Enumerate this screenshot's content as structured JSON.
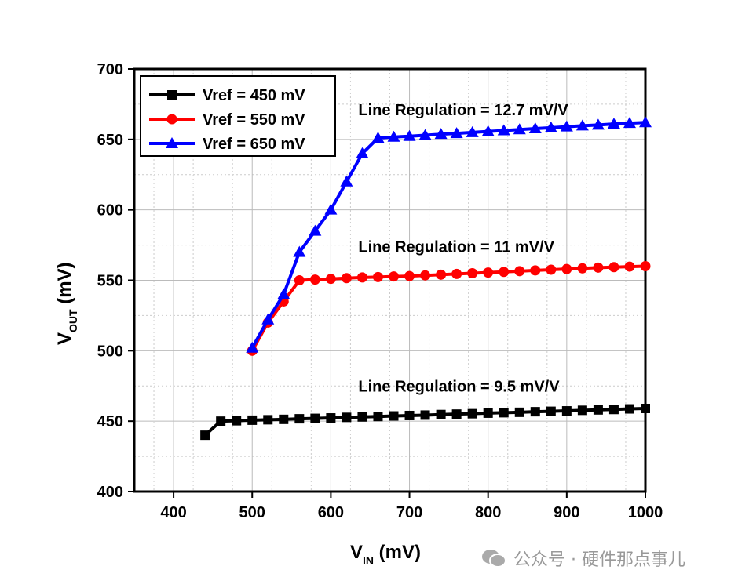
{
  "chart_data": {
    "type": "line",
    "xlabel": "V",
    "xlabel_sub": "IN",
    "xlabel_unit": " (mV)",
    "ylabel": "V",
    "ylabel_sub": "OUT",
    "ylabel_unit": " (mV)",
    "xlim": [
      350,
      1000
    ],
    "ylim": [
      400,
      700
    ],
    "xticks": [
      400,
      500,
      600,
      700,
      800,
      900,
      1000
    ],
    "yticks": [
      400,
      450,
      500,
      550,
      600,
      650,
      700
    ],
    "grid": true,
    "legend": "top-left",
    "series": [
      {
        "name": "Vref = 450 mV",
        "color": "#000000",
        "marker": "square",
        "x": [
          440,
          460,
          480,
          500,
          520,
          540,
          560,
          580,
          600,
          620,
          640,
          660,
          680,
          700,
          720,
          740,
          760,
          780,
          800,
          820,
          840,
          860,
          880,
          900,
          920,
          940,
          960,
          980,
          1000
        ],
        "y": [
          440,
          450,
          450.3,
          450.7,
          451,
          451.3,
          451.7,
          452,
          452.3,
          452.7,
          453,
          453.3,
          453.7,
          454,
          454.3,
          454.7,
          455,
          455.3,
          455.7,
          456,
          456.3,
          456.7,
          457,
          457.3,
          457.7,
          458,
          458.3,
          458.7,
          459
        ]
      },
      {
        "name": "Vref = 550 mV",
        "color": "#ff0000",
        "marker": "circle",
        "x": [
          500,
          520,
          540,
          560,
          580,
          600,
          620,
          640,
          660,
          680,
          700,
          720,
          740,
          760,
          780,
          800,
          820,
          840,
          860,
          880,
          900,
          920,
          940,
          960,
          980,
          1000
        ],
        "y": [
          500,
          520,
          535,
          550,
          550.5,
          551,
          551.5,
          552,
          552.3,
          552.7,
          553,
          553.5,
          554,
          554.5,
          555,
          555.5,
          556,
          556.5,
          557,
          557.5,
          558,
          558.5,
          559,
          559.3,
          559.7,
          560
        ]
      },
      {
        "name": "Vref = 650 mV",
        "color": "#0000ff",
        "marker": "triangle",
        "x": [
          500,
          520,
          540,
          560,
          580,
          600,
          620,
          640,
          660,
          680,
          700,
          720,
          740,
          760,
          780,
          800,
          820,
          840,
          860,
          880,
          900,
          920,
          940,
          960,
          980,
          1000
        ],
        "y": [
          502,
          522,
          540,
          570,
          585,
          600,
          620,
          640,
          651,
          651.7,
          652.3,
          653,
          653.7,
          654.3,
          655,
          655.7,
          656.3,
          657,
          657.7,
          658.3,
          659,
          659.7,
          660.3,
          661,
          661.5,
          662
        ]
      }
    ],
    "annotations": [
      {
        "text": "Line Regulation = 12.7 mV/V",
        "x": 620,
        "y": 671
      },
      {
        "text": "Line Regulation = 11 mV/V",
        "x": 620,
        "y": 574
      },
      {
        "text": "Line Regulation = 9.5 mV/V",
        "x": 620,
        "y": 475
      }
    ]
  },
  "watermark": {
    "text": "公众号 · 硬件那点事儿",
    "icon": "wechat-icon"
  }
}
